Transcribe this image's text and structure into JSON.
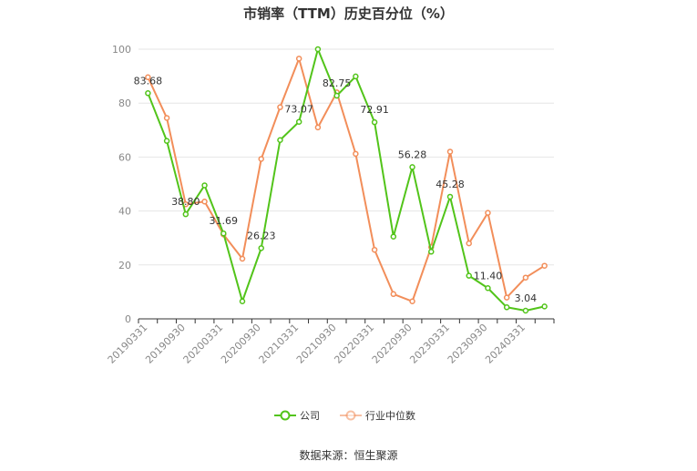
{
  "chart_data": {
    "type": "line",
    "title": "市销率（TTM）历史百分位（%）",
    "xlabel": "",
    "ylabel": "",
    "ylim": [
      0,
      100
    ],
    "yticks": [
      0,
      20,
      40,
      60,
      80,
      100
    ],
    "x": [
      "20190331",
      "20190630",
      "20190930",
      "20191231",
      "20200331",
      "20200630",
      "20200930",
      "20201231",
      "20210331",
      "20210630",
      "20210930",
      "20211231",
      "20220331",
      "20220630",
      "20220930",
      "20221231",
      "20230331",
      "20230630",
      "20230930",
      "20231231",
      "20240331",
      "20240630"
    ],
    "xtick_labels": [
      "20190331",
      "20190930",
      "20200331",
      "20200930",
      "20210331",
      "20210930",
      "20220331",
      "20220930",
      "20230331",
      "20230930",
      "20240331"
    ],
    "series": [
      {
        "name": "公司",
        "color": "#52c41a",
        "values": [
          83.68,
          66.0,
          38.8,
          49.5,
          31.69,
          6.5,
          26.23,
          66.3,
          73.07,
          100.0,
          82.75,
          89.9,
          72.91,
          30.5,
          56.28,
          24.9,
          45.28,
          16.0,
          11.4,
          4.3,
          3.04,
          4.6
        ],
        "labels": [
          "83.68",
          "",
          "38.80",
          "",
          "31.69",
          "",
          "26.23",
          "",
          "73.07",
          "",
          "82.75",
          "",
          "72.91",
          "",
          "56.28",
          "",
          "45.28",
          "",
          "11.40",
          "",
          "3.04",
          ""
        ]
      },
      {
        "name": "行业中位数",
        "color": "#f28e5a",
        "values": [
          89.6,
          74.5,
          42.5,
          43.5,
          31.3,
          22.3,
          59.3,
          78.5,
          96.5,
          71.0,
          84.0,
          61.2,
          25.6,
          9.2,
          6.5,
          26.6,
          62.0,
          28.0,
          39.3,
          7.9,
          15.3,
          19.7
        ]
      }
    ],
    "legend_position": "bottom",
    "grid": true
  },
  "footer": {
    "source": "数据来源：恒生聚源"
  }
}
